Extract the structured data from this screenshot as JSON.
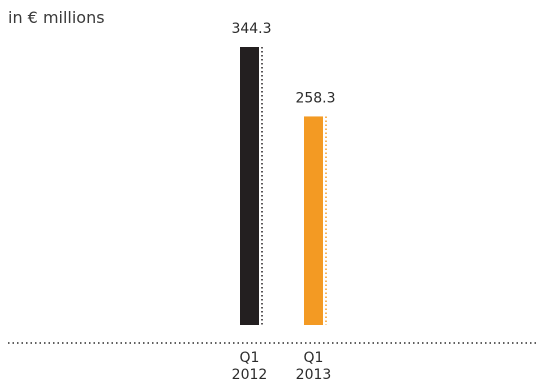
{
  "chart_data": {
    "type": "bar",
    "unit_label": "in € millions",
    "categories": [
      [
        "Q1",
        "2012"
      ],
      [
        "Q1",
        "2013"
      ]
    ],
    "values": [
      344.3,
      258.3
    ],
    "value_labels": [
      "344.3",
      "258.3"
    ],
    "colors": [
      "#231f20",
      "#f39a23"
    ],
    "ylim": [
      0,
      344.3
    ],
    "grid": false,
    "legend": "none"
  }
}
